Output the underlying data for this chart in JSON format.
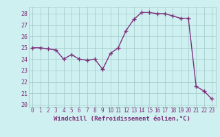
{
  "x": [
    0,
    1,
    2,
    3,
    4,
    5,
    6,
    7,
    8,
    9,
    10,
    11,
    12,
    13,
    14,
    15,
    16,
    17,
    18,
    19,
    20,
    21,
    22,
    23
  ],
  "y": [
    25.0,
    25.0,
    24.9,
    24.8,
    24.0,
    24.4,
    24.0,
    23.9,
    24.0,
    23.1,
    24.5,
    25.0,
    26.5,
    27.5,
    28.1,
    28.1,
    28.0,
    28.0,
    27.8,
    27.6,
    27.6,
    21.6,
    21.2,
    20.5
  ],
  "xlabel": "Windchill (Refroidissement éolien,°C)",
  "xlim": [
    -0.5,
    23.5
  ],
  "ylim": [
    19.8,
    28.6
  ],
  "yticks": [
    20,
    21,
    22,
    23,
    24,
    25,
    26,
    27,
    28
  ],
  "xticks": [
    0,
    1,
    2,
    3,
    4,
    5,
    6,
    7,
    8,
    9,
    10,
    11,
    12,
    13,
    14,
    15,
    16,
    17,
    18,
    19,
    20,
    21,
    22,
    23
  ],
  "line_color": "#7b2f7b",
  "marker": "+",
  "marker_size": 4,
  "marker_linewidth": 1.0,
  "linewidth": 1.0,
  "bg_color": "#cff0f0",
  "grid_color": "#a0c8c8",
  "tick_label_color": "#7b2f7b",
  "xlabel_color": "#7b2f7b",
  "fig_bg": "#cff0f0",
  "xlabel_fontsize": 6.5,
  "tick_fontsize": 5.5
}
